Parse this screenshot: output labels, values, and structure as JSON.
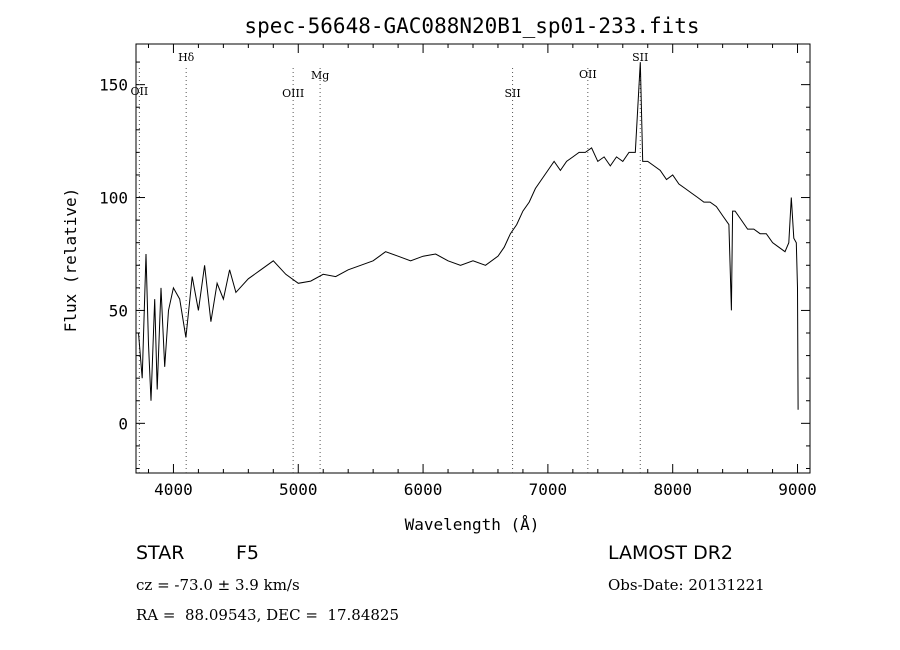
{
  "chart_data": {
    "type": "line",
    "title": "spec-56648-GAC088N20B1_sp01-233.fits",
    "xlabel": "Wavelength (Å)",
    "ylabel": "Flux (relative)",
    "xlim": [
      3700,
      9100
    ],
    "ylim": [
      -22,
      168
    ],
    "xticks": [
      4000,
      5000,
      6000,
      7000,
      8000,
      9000
    ],
    "yticks": [
      0,
      50,
      100,
      150
    ],
    "grid": false,
    "lines": [
      {
        "label": "OII",
        "x": 3727
      },
      {
        "label": "Hδ",
        "x": 4102
      },
      {
        "label": "OIII",
        "x": 4959
      },
      {
        "label": "Mg",
        "x": 5175
      },
      {
        "label": "SII",
        "x": 6717
      },
      {
        "label": "OII",
        "x": 7320
      },
      {
        "label": "SII",
        "x": 7740
      }
    ],
    "series": [
      {
        "x": [
          3720,
          3750,
          3780,
          3800,
          3820,
          3850,
          3870,
          3900,
          3930,
          3960,
          4000,
          4050,
          4100,
          4150,
          4200,
          4250,
          4300,
          4350,
          4400,
          4450,
          4500,
          4600,
          4700,
          4800,
          4900,
          5000,
          5100,
          5200,
          5300,
          5400,
          5500,
          5600,
          5700,
          5800,
          5900,
          6000,
          6100,
          6200,
          6300,
          6400,
          6500,
          6600,
          6650,
          6700,
          6750,
          6800,
          6850,
          6900,
          6950,
          7000,
          7050,
          7100,
          7150,
          7200,
          7250,
          7300,
          7350,
          7400,
          7450,
          7500,
          7550,
          7600,
          7650,
          7700,
          7740,
          7760,
          7800,
          7850,
          7900,
          7950,
          8000,
          8050,
          8100,
          8150,
          8200,
          8250,
          8300,
          8350,
          8400,
          8450,
          8470,
          8480,
          8500,
          8550,
          8600,
          8650,
          8700,
          8750,
          8800,
          8850,
          8900,
          8930,
          8950,
          8970,
          8990,
          9000,
          9005
        ],
        "y": [
          40,
          20,
          75,
          35,
          10,
          55,
          15,
          60,
          25,
          50,
          60,
          55,
          38,
          65,
          50,
          70,
          45,
          62,
          55,
          68,
          58,
          64,
          68,
          72,
          66,
          62,
          63,
          66,
          65,
          68,
          70,
          72,
          76,
          74,
          72,
          74,
          75,
          72,
          70,
          72,
          70,
          74,
          78,
          84,
          88,
          94,
          98,
          104,
          108,
          112,
          116,
          112,
          116,
          118,
          120,
          120,
          122,
          116,
          118,
          114,
          118,
          116,
          120,
          120,
          160,
          116,
          116,
          114,
          112,
          108,
          110,
          106,
          104,
          102,
          100,
          98,
          98,
          96,
          92,
          88,
          50,
          94,
          94,
          90,
          86,
          86,
          84,
          84,
          80,
          78,
          76,
          80,
          100,
          82,
          80,
          60,
          6
        ]
      }
    ]
  },
  "info": {
    "object_class": "STAR",
    "subclass": "F5",
    "survey": "LAMOST DR2",
    "cz": "cz = -73.0 ± 3.9 km/s",
    "obs_date": "Obs-Date: 20131221",
    "coords": "RA =  88.09543, DEC =  17.84825"
  }
}
